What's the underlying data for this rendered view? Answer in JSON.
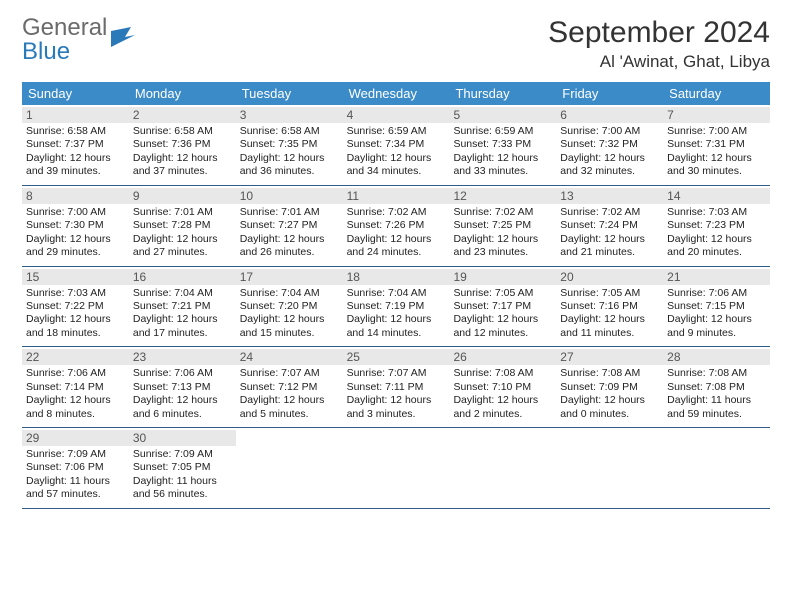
{
  "logo": {
    "word1": "General",
    "word2": "Blue"
  },
  "title": "September 2024",
  "location": "Al 'Awinat, Ghat, Libya",
  "colors": {
    "header_bg": "#3b8bc8",
    "header_fg": "#ffffff",
    "row_border": "#2f5d8a",
    "daynum_bg": "#e8e8e8",
    "logo_gray": "#6b6b6b",
    "logo_blue": "#2a7ab9"
  },
  "weekdays": [
    "Sunday",
    "Monday",
    "Tuesday",
    "Wednesday",
    "Thursday",
    "Friday",
    "Saturday"
  ],
  "weeks": [
    [
      {
        "n": "1",
        "sr": "6:58 AM",
        "ss": "7:37 PM",
        "dh": "12",
        "dm": "39"
      },
      {
        "n": "2",
        "sr": "6:58 AM",
        "ss": "7:36 PM",
        "dh": "12",
        "dm": "37"
      },
      {
        "n": "3",
        "sr": "6:58 AM",
        "ss": "7:35 PM",
        "dh": "12",
        "dm": "36"
      },
      {
        "n": "4",
        "sr": "6:59 AM",
        "ss": "7:34 PM",
        "dh": "12",
        "dm": "34"
      },
      {
        "n": "5",
        "sr": "6:59 AM",
        "ss": "7:33 PM",
        "dh": "12",
        "dm": "33"
      },
      {
        "n": "6",
        "sr": "7:00 AM",
        "ss": "7:32 PM",
        "dh": "12",
        "dm": "32"
      },
      {
        "n": "7",
        "sr": "7:00 AM",
        "ss": "7:31 PM",
        "dh": "12",
        "dm": "30"
      }
    ],
    [
      {
        "n": "8",
        "sr": "7:00 AM",
        "ss": "7:30 PM",
        "dh": "12",
        "dm": "29"
      },
      {
        "n": "9",
        "sr": "7:01 AM",
        "ss": "7:28 PM",
        "dh": "12",
        "dm": "27"
      },
      {
        "n": "10",
        "sr": "7:01 AM",
        "ss": "7:27 PM",
        "dh": "12",
        "dm": "26"
      },
      {
        "n": "11",
        "sr": "7:02 AM",
        "ss": "7:26 PM",
        "dh": "12",
        "dm": "24"
      },
      {
        "n": "12",
        "sr": "7:02 AM",
        "ss": "7:25 PM",
        "dh": "12",
        "dm": "23"
      },
      {
        "n": "13",
        "sr": "7:02 AM",
        "ss": "7:24 PM",
        "dh": "12",
        "dm": "21"
      },
      {
        "n": "14",
        "sr": "7:03 AM",
        "ss": "7:23 PM",
        "dh": "12",
        "dm": "20"
      }
    ],
    [
      {
        "n": "15",
        "sr": "7:03 AM",
        "ss": "7:22 PM",
        "dh": "12",
        "dm": "18"
      },
      {
        "n": "16",
        "sr": "7:04 AM",
        "ss": "7:21 PM",
        "dh": "12",
        "dm": "17"
      },
      {
        "n": "17",
        "sr": "7:04 AM",
        "ss": "7:20 PM",
        "dh": "12",
        "dm": "15"
      },
      {
        "n": "18",
        "sr": "7:04 AM",
        "ss": "7:19 PM",
        "dh": "12",
        "dm": "14"
      },
      {
        "n": "19",
        "sr": "7:05 AM",
        "ss": "7:17 PM",
        "dh": "12",
        "dm": "12"
      },
      {
        "n": "20",
        "sr": "7:05 AM",
        "ss": "7:16 PM",
        "dh": "12",
        "dm": "11"
      },
      {
        "n": "21",
        "sr": "7:06 AM",
        "ss": "7:15 PM",
        "dh": "12",
        "dm": "9"
      }
    ],
    [
      {
        "n": "22",
        "sr": "7:06 AM",
        "ss": "7:14 PM",
        "dh": "12",
        "dm": "8"
      },
      {
        "n": "23",
        "sr": "7:06 AM",
        "ss": "7:13 PM",
        "dh": "12",
        "dm": "6"
      },
      {
        "n": "24",
        "sr": "7:07 AM",
        "ss": "7:12 PM",
        "dh": "12",
        "dm": "5"
      },
      {
        "n": "25",
        "sr": "7:07 AM",
        "ss": "7:11 PM",
        "dh": "12",
        "dm": "3"
      },
      {
        "n": "26",
        "sr": "7:08 AM",
        "ss": "7:10 PM",
        "dh": "12",
        "dm": "2"
      },
      {
        "n": "27",
        "sr": "7:08 AM",
        "ss": "7:09 PM",
        "dh": "12",
        "dm": "0"
      },
      {
        "n": "28",
        "sr": "7:08 AM",
        "ss": "7:08 PM",
        "dh": "11",
        "dm": "59"
      }
    ],
    [
      {
        "n": "29",
        "sr": "7:09 AM",
        "ss": "7:06 PM",
        "dh": "11",
        "dm": "57"
      },
      {
        "n": "30",
        "sr": "7:09 AM",
        "ss": "7:05 PM",
        "dh": "11",
        "dm": "56"
      },
      null,
      null,
      null,
      null,
      null
    ]
  ]
}
